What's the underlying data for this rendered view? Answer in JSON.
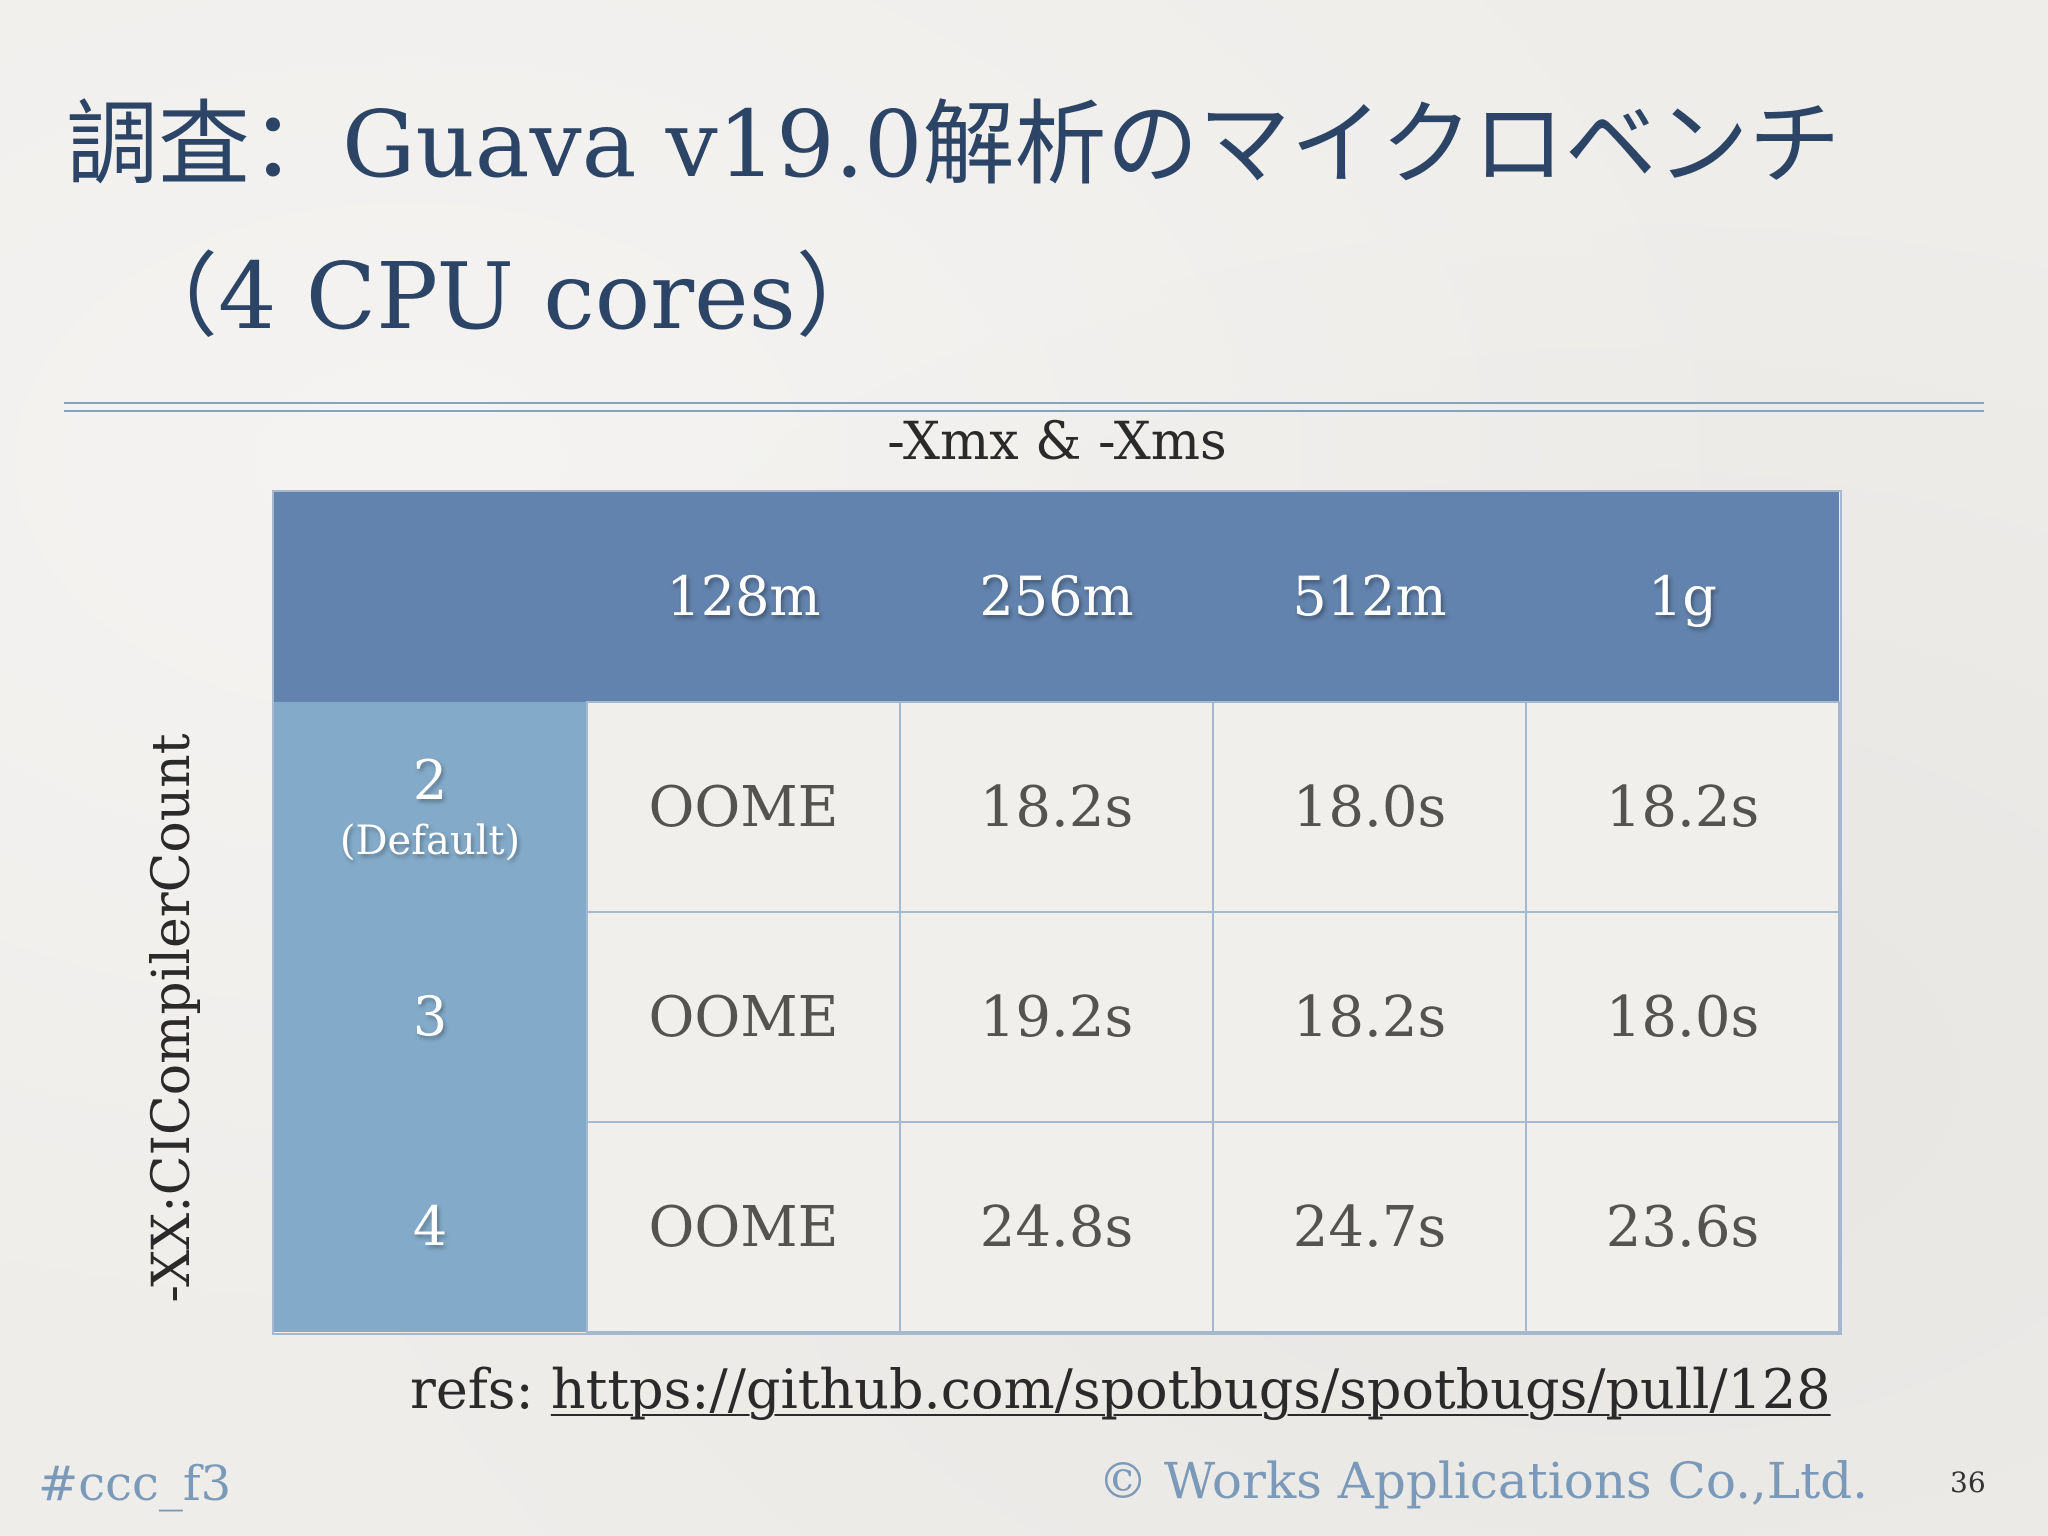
{
  "slide": {
    "title_line1": "調査：Guava v19.0解析のマイクロベンチ",
    "title_line2": "（4 CPU cores）",
    "column_axis_label": "-Xmx & -Xms",
    "row_axis_label": "-XX:CICompilerCount",
    "table": {
      "corner": "",
      "columns": [
        "128m",
        "256m",
        "512m",
        "1g"
      ],
      "rows": [
        {
          "label": "2",
          "sublabel": "(Default)",
          "values": [
            "OOME",
            "18.2s",
            "18.0s",
            "18.2s"
          ]
        },
        {
          "label": "3",
          "sublabel": "",
          "values": [
            "OOME",
            "19.2s",
            "18.2s",
            "18.0s"
          ]
        },
        {
          "label": "4",
          "sublabel": "",
          "values": [
            "OOME",
            "24.8s",
            "24.7s",
            "23.6s"
          ]
        }
      ]
    },
    "refs_label": "refs:",
    "refs_link": "https://github.com/spotbugs/spotbugs/pull/128",
    "hashtag": "#ccc_f3",
    "copyright": "© Works Applications Co.,Ltd.",
    "page_number": "36",
    "colors": {
      "title": "#2c4566",
      "header_bg": "#6283ad",
      "row_header_bg": "#83abc9",
      "cell_bg": "#f1efec",
      "footer_text": "#7b9ab9"
    }
  }
}
